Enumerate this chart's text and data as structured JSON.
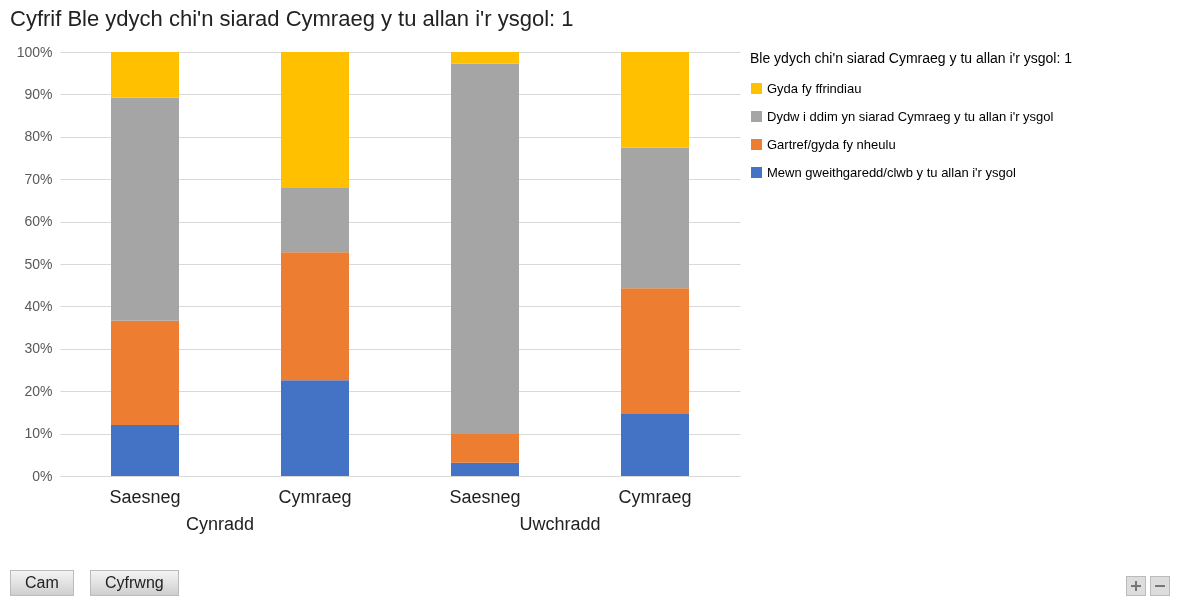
{
  "chart_data": {
    "type": "bar",
    "title": "Cyfrif Ble ydych chi'n siarad Cymraeg y tu allan i'r ysgol: 1",
    "legend_title": "Ble ydych chi'n siarad Cymraeg y tu allan i'r ysgol: 1",
    "categories": [
      "Saesneg",
      "Cymraeg",
      "Saesneg",
      "Cymraeg"
    ],
    "stacked": true,
    "series": [
      {
        "name": "Mewn gweithgaredd/clwb y tu allan i'r ysgol",
        "color": "#4472c4",
        "values": [
          12.0,
          22.6,
          3.1,
          14.6
        ]
      },
      {
        "name": "Gartref/gyda fy nheulu",
        "color": "#ed7d31",
        "values": [
          24.6,
          30.2,
          6.8,
          29.7
        ]
      },
      {
        "name": "Dydw i ddim yn siarad Cymraeg y tu allan i'r ysgol",
        "color": "#a5a5a5",
        "values": [
          52.6,
          15.1,
          87.3,
          33.1
        ]
      },
      {
        "name": "Gyda fy ffrindiau",
        "color": "#ffc000",
        "values": [
          10.8,
          32.1,
          2.8,
          22.6
        ]
      }
    ],
    "ylim": [
      0,
      100
    ],
    "yticks": [
      {
        "value": 0,
        "label": "0%"
      },
      {
        "value": 10,
        "label": "10%"
      },
      {
        "value": 20,
        "label": "20%"
      },
      {
        "value": 30,
        "label": "30%"
      },
      {
        "value": 40,
        "label": "40%"
      },
      {
        "value": 50,
        "label": "50%"
      },
      {
        "value": 60,
        "label": "60%"
      },
      {
        "value": 70,
        "label": "70%"
      },
      {
        "value": 80,
        "label": "80%"
      },
      {
        "value": 90,
        "label": "90%"
      },
      {
        "value": 100,
        "label": "100%"
      }
    ],
    "grid": "y",
    "legend": "right",
    "annotations": [
      "Cynradd",
      "Uwchradd",
      "Cam",
      "Cyfrwng"
    ]
  }
}
